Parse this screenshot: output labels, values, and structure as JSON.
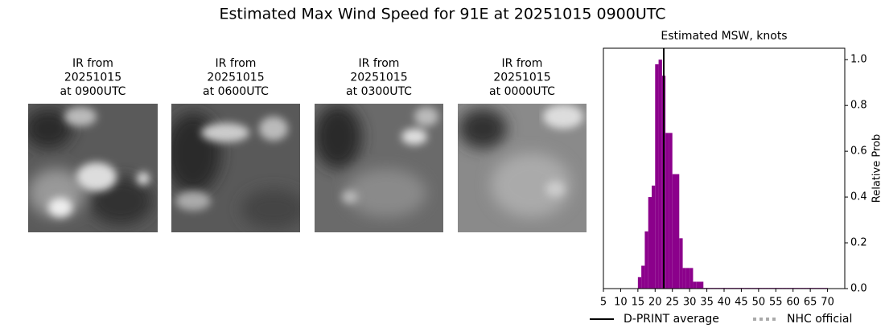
{
  "title": "Estimated Max Wind Speed for 91E at 20251015 0900UTC",
  "panels": [
    {
      "lines": [
        "IR from",
        "20251015",
        "at 0900UTC"
      ]
    },
    {
      "lines": [
        "IR from",
        "20251015",
        "at 0600UTC"
      ]
    },
    {
      "lines": [
        "IR from",
        "20251015",
        "at 0300UTC"
      ]
    },
    {
      "lines": [
        "IR from",
        "20251015",
        "at 0000UTC"
      ]
    }
  ],
  "chart_data": {
    "type": "histogram",
    "title": "Estimated MSW, knots",
    "y_label": "Relative Prob",
    "color": "#8b008b",
    "bins": [
      15,
      16,
      17,
      18,
      19,
      20,
      21,
      22,
      23,
      24,
      25,
      26,
      27,
      28,
      29,
      30,
      31,
      32,
      33,
      34,
      35,
      36,
      37,
      38,
      39,
      40,
      41,
      42,
      43,
      44,
      45,
      46,
      47,
      48,
      49,
      50,
      51,
      52,
      53,
      54,
      55,
      56,
      57,
      58,
      59,
      60,
      61,
      62,
      63,
      64,
      65,
      66,
      67,
      68,
      69,
      70
    ],
    "values": [
      0.05,
      0.1,
      0.25,
      0.4,
      0.45,
      0.98,
      1.0,
      0.93,
      0.68,
      0.68,
      0.5,
      0.5,
      0.22,
      0.09,
      0.09,
      0.09,
      0.03,
      0.03,
      0.03,
      0.003,
      0.003,
      0.003,
      0.003,
      0.003,
      0.003,
      0.003,
      0.003,
      0.003,
      0.003,
      0.003,
      0.003,
      0.003,
      0.003,
      0.003,
      0.003,
      0.003,
      0.003,
      0.003,
      0.003,
      0.003,
      0.003,
      0.003,
      0.003,
      0.003,
      0.003,
      0.003,
      0.003,
      0.003,
      0.003,
      0.003,
      0.003,
      0.003,
      0.003,
      0.003,
      0.003
    ],
    "xlim": [
      5,
      75
    ],
    "xticks": [
      5,
      10,
      15,
      20,
      25,
      30,
      35,
      40,
      45,
      50,
      55,
      60,
      65,
      70
    ],
    "ylim": [
      0,
      1.05
    ],
    "yticks": [
      {
        "value": 0,
        "label": "0.0"
      },
      0.2,
      0.4,
      0.6,
      0.8,
      {
        "value": 1,
        "label": "1.0"
      }
    ],
    "lines": [
      {
        "name": "D-PRINT average",
        "color": "#000000",
        "x": 22.5
      },
      {
        "name": "NHC official",
        "color": "#aaaaaa",
        "style": "dotted"
      }
    ]
  }
}
